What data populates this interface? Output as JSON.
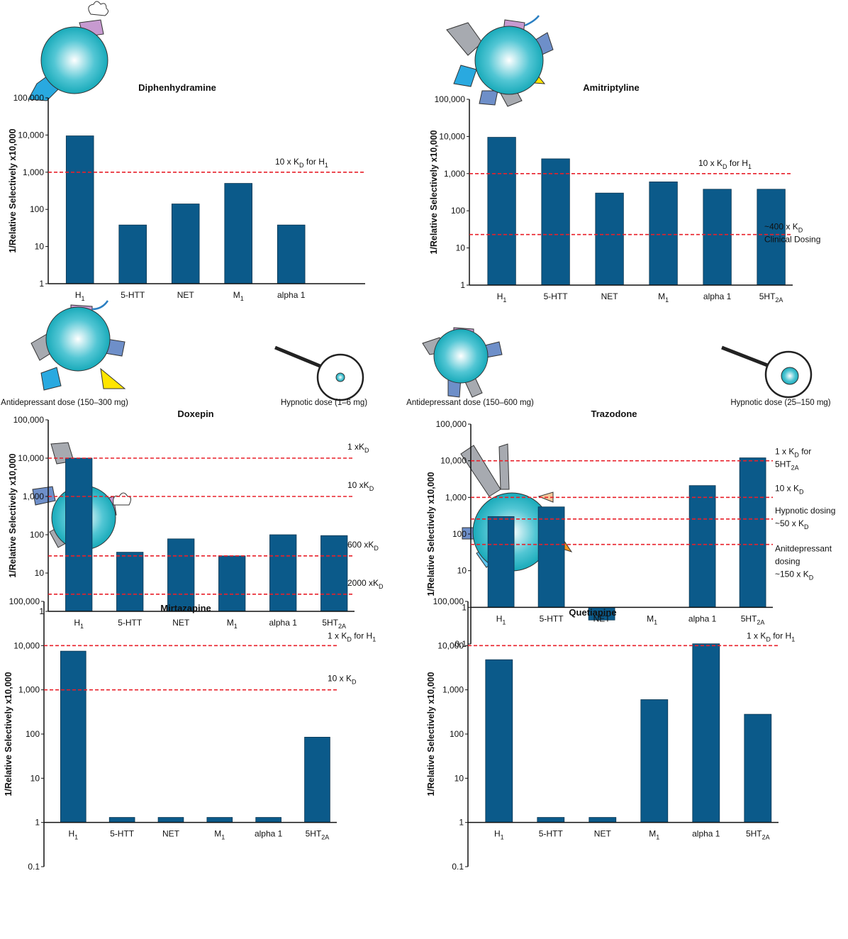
{
  "chart_data": [
    {
      "type": "bar",
      "title": "Diphenhydramine",
      "ylabel": "1/Relative Selectively x10,000",
      "log_scale": true,
      "color": "#0b5a8a",
      "categories": [
        [
          "H",
          {
            "sub": "1"
          }
        ],
        [
          "5-HTT"
        ],
        [
          "NET"
        ],
        [
          "M",
          {
            "sub": "1"
          }
        ],
        [
          "alpha 1"
        ]
      ],
      "values": [
        9500,
        38,
        140,
        500,
        38
      ],
      "ylim": [
        1,
        100000
      ],
      "yticks": [
        1,
        10,
        100,
        {
          "value": 1000,
          "label": "1,000"
        },
        {
          "value": 10000,
          "label": "10,000"
        },
        {
          "value": 100000,
          "label": "100,000"
        }
      ],
      "reference_lines": [
        {
          "value": 1000,
          "color": "#e8202a",
          "label": [
            [
              "10 x K",
              {
                "sub": "D"
              },
              " for H",
              {
                "sub": "1"
              }
            ]
          ]
        }
      ]
    },
    {
      "type": "bar",
      "title": "Amitriptyline",
      "ylabel": "1/Relative Selectively x10,000",
      "log_scale": true,
      "color": "#0b5a8a",
      "categories": [
        [
          "H",
          {
            "sub": "1"
          }
        ],
        [
          "5-HTT"
        ],
        [
          "NET"
        ],
        [
          "M",
          {
            "sub": "1"
          }
        ],
        [
          "alpha 1"
        ],
        [
          "5HT",
          {
            "sub": "2A"
          }
        ]
      ],
      "values": [
        9500,
        2500,
        300,
        600,
        380,
        380
      ],
      "ylim": [
        1,
        100000
      ],
      "yticks": [
        1,
        10,
        100,
        {
          "value": 1000,
          "label": "1,000"
        },
        {
          "value": 10000,
          "label": "10,000"
        },
        {
          "value": 100000,
          "label": "100,000"
        }
      ],
      "reference_lines": [
        {
          "value": 1000,
          "color": "#e8202a",
          "label": [
            [
              "10 x K",
              {
                "sub": "D"
              },
              " for H",
              {
                "sub": "1"
              }
            ]
          ]
        },
        {
          "value": 23,
          "color": "#e8202a",
          "label": [
            [
              "~400 x K",
              {
                "sub": "D"
              }
            ],
            [
              "Clinical Dosing"
            ]
          ]
        }
      ]
    },
    {
      "type": "bar",
      "title": "Doxepin",
      "ylabel": "1/Relative Selectively x10,000",
      "log_scale": true,
      "color": "#0b5a8a",
      "captions": [
        "Antidepressant dose (150–300 mg)",
        "Hypnotic dose (1–6 mg)"
      ],
      "categories": [
        [
          "H",
          {
            "sub": "1"
          }
        ],
        [
          "5-HTT"
        ],
        [
          "NET"
        ],
        [
          "M",
          {
            "sub": "1"
          }
        ],
        [
          "alpha 1"
        ],
        [
          "5HT",
          {
            "sub": "2A"
          }
        ]
      ],
      "values": [
        10000,
        35,
        78,
        28,
        100,
        95
      ],
      "ylim": [
        1,
        100000
      ],
      "yticks": [
        1,
        10,
        100,
        {
          "value": 1000,
          "label": "1,000"
        },
        {
          "value": 10000,
          "label": "10,000"
        },
        {
          "value": 100000,
          "label": "100,000"
        }
      ],
      "reference_lines": [
        {
          "value": 10000,
          "color": "#e8202a",
          "label": [
            [
              "1  xK",
              {
                "sub": "D"
              }
            ]
          ]
        },
        {
          "value": 1000,
          "color": "#e8202a",
          "label": [
            [
              "10  xK",
              {
                "sub": "D"
              }
            ]
          ]
        },
        {
          "value": 28,
          "color": "#e8202a",
          "label": [
            [
              "600  xK",
              {
                "sub": "D"
              }
            ]
          ]
        },
        {
          "value": 2.8,
          "color": "#e8202a",
          "label": [
            [
              "2000  xK",
              {
                "sub": "D"
              }
            ]
          ]
        }
      ]
    },
    {
      "type": "bar",
      "title": "Trazodone",
      "ylabel": "1/Relative Selectively x10,000",
      "log_scale": true,
      "color": "#0b5a8a",
      "captions": [
        "Antidepressant dose (150–600 mg)",
        "Hypnotic dose (25–150 mg)"
      ],
      "categories": [
        [
          "H",
          {
            "sub": "1"
          }
        ],
        [
          "5-HTT"
        ],
        [
          "NET"
        ],
        [
          "M",
          {
            "sub": "1"
          }
        ],
        [
          "alpha 1"
        ],
        [
          "5HT",
          {
            "sub": "2A"
          }
        ]
      ],
      "values": [
        300,
        550,
        0.45,
        null,
        2100,
        12000
      ],
      "ylim": [
        0.1,
        100000
      ],
      "yticks": [
        0.1,
        1,
        10,
        100,
        {
          "value": 1000,
          "label": "1,000"
        },
        {
          "value": 10000,
          "label": "10,000"
        },
        {
          "value": 100000,
          "label": "100,000"
        }
      ],
      "reference_lines": [
        {
          "value": 10000,
          "color": "#e8202a",
          "label": [
            [
              "1 x K",
              {
                "sub": "D"
              },
              " for"
            ],
            [
              "5HT",
              {
                "sub": "2A"
              }
            ]
          ]
        },
        {
          "value": 1000,
          "color": "#e8202a",
          "label": [
            [
              "10  x K",
              {
                "sub": "D"
              }
            ]
          ]
        },
        {
          "value": 257,
          "color": "#e8202a",
          "label": [
            [
              "Hypnotic dosing"
            ],
            [
              "~50  x K",
              {
                "sub": "D"
              }
            ]
          ]
        },
        {
          "value": 52,
          "color": "#e8202a",
          "label": [
            [
              "Anitdepressant"
            ],
            [
              "dosing"
            ],
            [
              "~150  x K",
              {
                "sub": "D"
              }
            ]
          ]
        }
      ]
    },
    {
      "type": "bar",
      "title": "Mirtazapine",
      "ylabel": "1/Relative Selectively x10,000",
      "log_scale": true,
      "color": "#0b5a8a",
      "categories": [
        [
          "H",
          {
            "sub": "1"
          }
        ],
        [
          "5-HTT"
        ],
        [
          "NET"
        ],
        [
          "M",
          {
            "sub": "1"
          }
        ],
        [
          "alpha 1"
        ],
        [
          "5HT",
          {
            "sub": "2A"
          }
        ]
      ],
      "values": [
        7500,
        1.3,
        1.3,
        1.3,
        1.3,
        85
      ],
      "ylim": [
        0.1,
        100000
      ],
      "yticks": [
        0.1,
        1,
        10,
        100,
        {
          "value": 1000,
          "label": "1,000"
        },
        {
          "value": 10000,
          "label": "10,000"
        },
        {
          "value": 100000,
          "label": "100,000"
        }
      ],
      "reference_lines": [
        {
          "value": 10000,
          "color": "#e8202a",
          "label": [
            [
              "1  x K",
              {
                "sub": "D"
              },
              " for H",
              {
                "sub": "1"
              }
            ]
          ]
        },
        {
          "value": 1000,
          "color": "#e8202a",
          "label": [
            [
              "10  x K",
              {
                "sub": "D"
              }
            ]
          ]
        }
      ]
    },
    {
      "type": "bar",
      "title": "Quetiapine",
      "ylabel": "1/Relative Selectively x10,000",
      "log_scale": true,
      "color": "#0b5a8a",
      "categories": [
        [
          "H",
          {
            "sub": "1"
          }
        ],
        [
          "5-HTT"
        ],
        [
          "NET"
        ],
        [
          "M",
          {
            "sub": "1"
          }
        ],
        [
          "alpha 1"
        ],
        [
          "5HT",
          {
            "sub": "2A"
          }
        ]
      ],
      "values": [
        4800,
        1.3,
        1.3,
        600,
        11000,
        280
      ],
      "ylim": [
        0.1,
        100000
      ],
      "yticks": [
        0.1,
        1,
        10,
        100,
        {
          "value": 1000,
          "label": "1,000"
        },
        {
          "value": 10000,
          "label": "10,000"
        },
        {
          "value": 100000,
          "label": "100,000"
        }
      ],
      "reference_lines": [
        {
          "value": 10000,
          "color": "#e8202a",
          "label": [
            [
              "1 x K",
              {
                "sub": "D"
              },
              " for H",
              {
                "sub": "1"
              }
            ]
          ]
        }
      ]
    }
  ]
}
